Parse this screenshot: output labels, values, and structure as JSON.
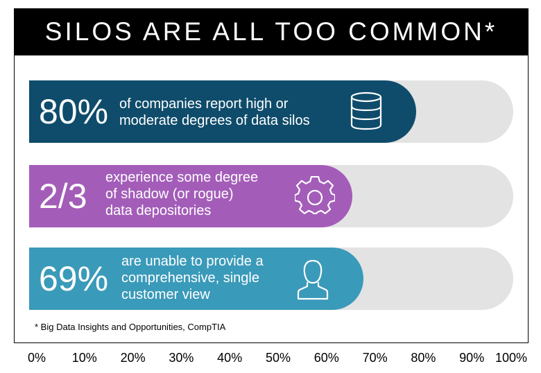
{
  "header": {
    "title": "SILOS ARE ALL TOO COMMON*"
  },
  "chart_data": {
    "type": "bar",
    "orientation": "horizontal",
    "xlim": [
      0,
      100
    ],
    "ticks": [
      "0%",
      "10%",
      "20%",
      "30%",
      "40%",
      "50%",
      "60%",
      "70%",
      "80%",
      "90%",
      "100%"
    ],
    "items": [
      {
        "stat": "80%",
        "value": 80,
        "desc": [
          "of companies report high or",
          "moderate degrees of data silos"
        ],
        "color": "#0f4c6b",
        "icon": "database-icon"
      },
      {
        "stat": "2/3",
        "value": 66.7,
        "desc": [
          "experience some degree",
          "of shadow (or rogue)",
          "data depositories"
        ],
        "color": "#a35db8",
        "icon": "gear-icon"
      },
      {
        "stat": "69%",
        "value": 69,
        "desc": [
          "are unable to provide a",
          "comprehensive, single",
          "customer view"
        ],
        "color": "#3a9ab9",
        "icon": "user-icon"
      }
    ],
    "track_color": "#e3e3e3"
  },
  "footnote": "* Big Data Insights and Opportunities, CompTIA"
}
